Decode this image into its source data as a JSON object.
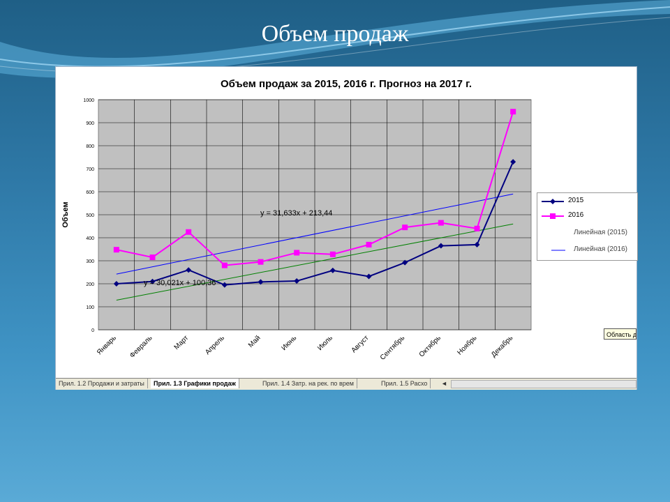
{
  "slide": {
    "title": "Объем продаж"
  },
  "chart_data": {
    "type": "line",
    "title": "Объем продаж за 2015, 2016 г. Прогноз на 2017 г.",
    "ylabel": "Объем",
    "xlabel": "",
    "ylim": [
      0,
      1000
    ],
    "yticks": [
      0,
      100,
      200,
      300,
      400,
      500,
      600,
      700,
      800,
      900,
      1000
    ],
    "categories": [
      "Январь",
      "Февраль",
      "Март",
      "Апрель",
      "Май",
      "Июнь",
      "Июль",
      "Август",
      "Сентябрь",
      "Октябрь",
      "Ноябрь",
      "Декабрь"
    ],
    "series": [
      {
        "name": "2015",
        "color": "#000080",
        "marker": "diamond",
        "values": [
          200,
          210,
          260,
          195,
          208,
          212,
          258,
          232,
          292,
          365,
          370,
          730
        ]
      },
      {
        "name": "2016",
        "color": "#ff00ff",
        "marker": "square",
        "values": [
          348,
          315,
          425,
          280,
          295,
          335,
          328,
          370,
          445,
          465,
          440,
          948
        ]
      }
    ],
    "trendlines": [
      {
        "name": "Линейная (2015)",
        "color": "#008000",
        "equation": "y = 30,021x + 100,36"
      },
      {
        "name": "Линейная (2016)",
        "color": "#0000ff",
        "equation": "y = 31,633x + 213,44"
      }
    ],
    "grid": true,
    "legend": "right"
  },
  "sheet_tabs": [
    {
      "label": "Прил. 1.2 Продажи и затраты",
      "active": false
    },
    {
      "label": "Прил. 1.3 Графики продаж",
      "active": true
    },
    {
      "label": "Прил. 1.4 Затр. на рек. по врем",
      "active": false
    },
    {
      "label": "Прил. 1.5 Расхо",
      "active": false
    }
  ],
  "tooltip": {
    "label": "Область д"
  },
  "colors": {
    "plot_background": "#c0c0c0",
    "slide_background": "#2e78a6"
  }
}
